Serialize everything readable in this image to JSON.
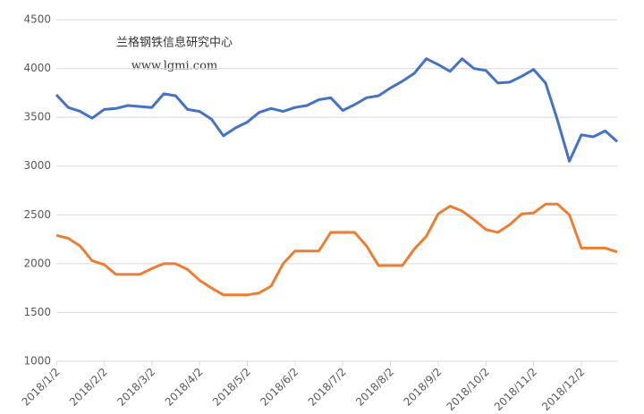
{
  "chart_data": {
    "type": "line",
    "annotations": [
      "兰格钢铁信息研究中心",
      "www.lgmi.com"
    ],
    "categories": [
      "2018/1/2",
      null,
      null,
      null,
      "2018/2/2",
      null,
      null,
      null,
      "2018/3/2",
      null,
      null,
      null,
      "2018/4/2",
      null,
      null,
      null,
      "2018/5/2",
      null,
      null,
      null,
      "2018/6/2",
      null,
      null,
      null,
      "2018/7/2",
      null,
      null,
      null,
      "2018/8/2",
      null,
      null,
      null,
      "2018/9/2",
      null,
      null,
      null,
      "2018/10/2",
      null,
      null,
      null,
      "2018/11/2",
      null,
      null,
      null,
      "2018/12/2",
      null,
      null,
      null
    ],
    "series": [
      {
        "color": "#4472c4",
        "values": [
          3730,
          3600,
          3560,
          3490,
          3580,
          3590,
          3620,
          3610,
          3600,
          3740,
          3720,
          3580,
          3560,
          3480,
          3310,
          3390,
          3450,
          3550,
          3590,
          3560,
          3600,
          3620,
          3680,
          3700,
          3570,
          3630,
          3700,
          3720,
          3800,
          3870,
          3950,
          4100,
          4040,
          3970,
          4100,
          4000,
          3980,
          3850,
          3860,
          3920,
          3990,
          3850,
          3470,
          3050,
          3320,
          3300,
          3360,
          3250
        ]
      },
      {
        "color": "#ed7d31",
        "values": [
          2290,
          2260,
          2180,
          2030,
          1990,
          1890,
          1890,
          1890,
          1950,
          2000,
          2000,
          1940,
          1830,
          1750,
          1680,
          1680,
          1680,
          1700,
          1770,
          2000,
          2130,
          2130,
          2130,
          2320,
          2320,
          2320,
          2180,
          1980,
          1980,
          1980,
          2150,
          2280,
          2510,
          2590,
          2540,
          2450,
          2350,
          2320,
          2400,
          2510,
          2520,
          2610,
          2610,
          2500,
          2160,
          2160,
          2160,
          2120
        ]
      }
    ],
    "ylim": [
      1000,
      4500
    ],
    "yticks": [
      1000,
      1500,
      2000,
      2500,
      3000,
      3500,
      4000,
      4500
    ],
    "grid": true
  }
}
